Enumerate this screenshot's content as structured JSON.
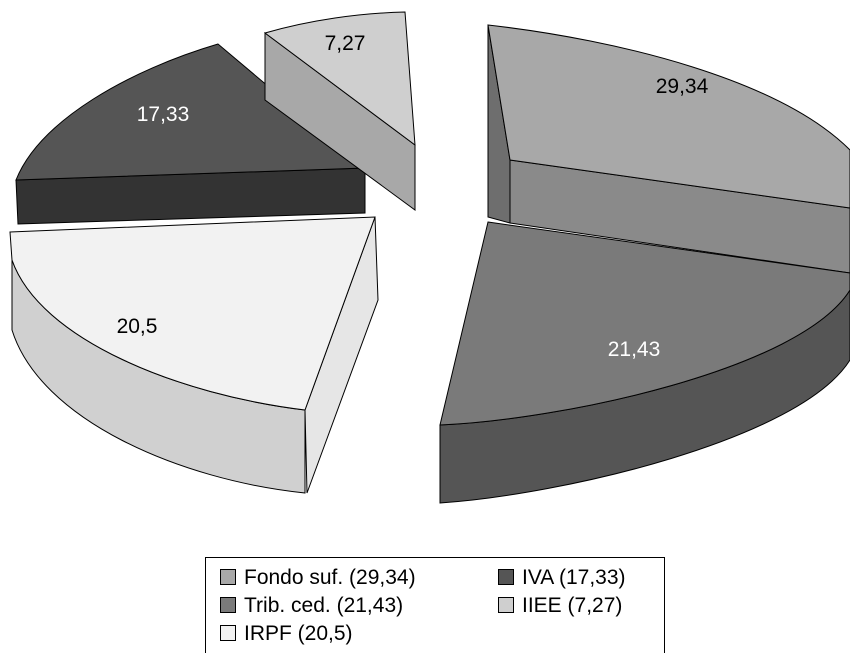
{
  "chart_data": {
    "type": "pie",
    "style": "3d-exploded",
    "title": "",
    "slices": [
      {
        "name": "Fondo suf.",
        "value": 29.34,
        "label": "29,34",
        "legend": "Fondo suf. (29,34)",
        "color": "#a8a8a8"
      },
      {
        "name": "Trib. ced.",
        "value": 21.43,
        "label": "21,43",
        "legend": "Trib. ced. (21,43)",
        "color": "#7a7a7a"
      },
      {
        "name": "IRPF",
        "value": 20.5,
        "label": "20,5",
        "legend": "IRPF (20,5)",
        "color": "#f2f2f2"
      },
      {
        "name": "IVA",
        "value": 17.33,
        "label": "17,33",
        "legend": "IVA (17,33)",
        "color": "#555555"
      },
      {
        "name": "IIEE",
        "value": 7.27,
        "label": "7,27",
        "legend": "IIEE (7,27)",
        "color": "#cfcfcf"
      }
    ],
    "legend_position": "bottom"
  }
}
